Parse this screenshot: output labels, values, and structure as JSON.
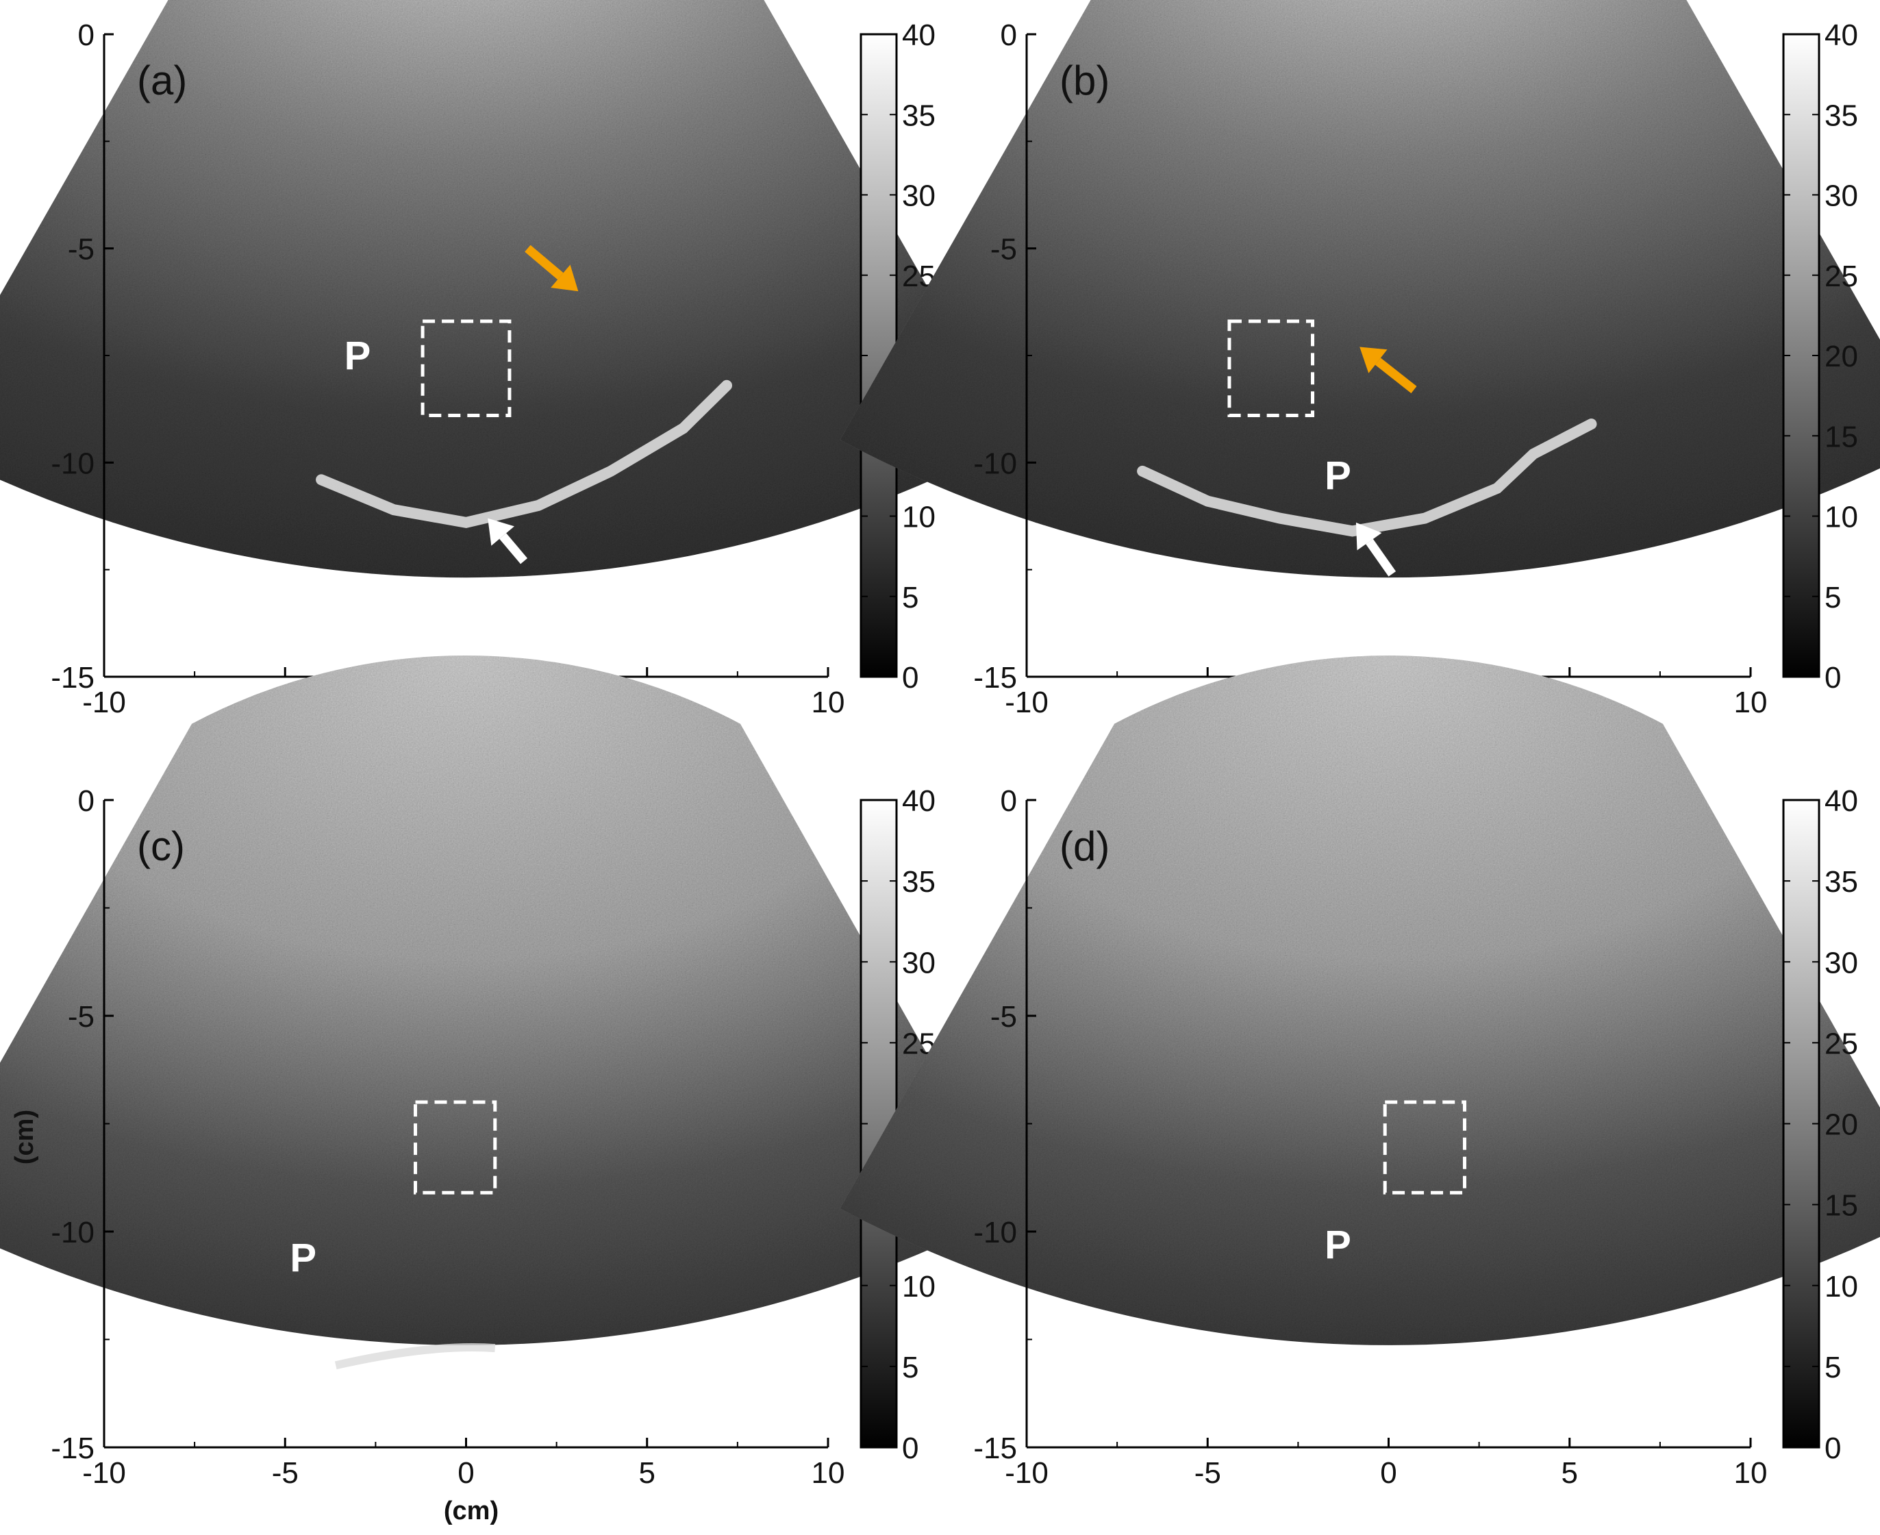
{
  "figure": {
    "xlabel": "(cm)",
    "ylabel": "(cm)",
    "colorbar": {
      "min": 0,
      "max": 40,
      "ticks": [
        "0",
        "5",
        "10",
        "15",
        "20",
        "25",
        "30",
        "35",
        "40"
      ]
    },
    "x_ticks": [
      "-10",
      "-5",
      "0",
      "5",
      "10"
    ],
    "y_ticks": [
      "0",
      "-5",
      "-10",
      "-15"
    ],
    "colors": {
      "orange_arrow": "#f5a100",
      "white_arrow": "#ffffff",
      "roi_box": "#ffffff"
    }
  },
  "chart_data": [
    {
      "type": "heatmap",
      "panel": "(a)",
      "xlim": [
        -10,
        10
      ],
      "ylim": [
        -15,
        0
      ],
      "colorbar_range": [
        0,
        40
      ],
      "roi_box": {
        "x": [
          -1.2,
          1.2
        ],
        "y": [
          -6.7,
          -8.9
        ]
      },
      "markers": [
        {
          "text": "P",
          "x": -3.0,
          "y": -7.5
        }
      ],
      "white_arrow": {
        "tip_x": 0.6,
        "tip_y": -11.3,
        "tail_x": 1.6,
        "tail_y": -12.3
      },
      "orange_arrow": {
        "tip_x": 3.1,
        "tip_y": -6.0,
        "tail_x": 1.7,
        "tail_y": -5.0
      }
    },
    {
      "type": "heatmap",
      "panel": "(b)",
      "xlim": [
        -10,
        10
      ],
      "ylim": [
        -15,
        0
      ],
      "colorbar_range": [
        0,
        40
      ],
      "roi_box": {
        "x": [
          -4.4,
          -2.1
        ],
        "y": [
          -6.7,
          -8.9
        ]
      },
      "markers": [
        {
          "text": "P",
          "x": -1.4,
          "y": -10.3
        }
      ],
      "white_arrow": {
        "tip_x": -0.9,
        "tip_y": -11.4,
        "tail_x": 0.1,
        "tail_y": -12.6
      },
      "orange_arrow": {
        "tip_x": -0.8,
        "tip_y": -7.3,
        "tail_x": 0.7,
        "tail_y": -8.3
      }
    },
    {
      "type": "heatmap",
      "panel": "(c)",
      "xlim": [
        -10,
        10
      ],
      "ylim": [
        -15,
        0
      ],
      "colorbar_range": [
        0,
        40
      ],
      "roi_box": {
        "x": [
          -1.4,
          0.8
        ],
        "y": [
          -7.0,
          -9.1
        ]
      },
      "markers": [
        {
          "text": "P",
          "x": -4.5,
          "y": -10.6
        }
      ],
      "white_arrow": {
        "tip_x": 0.1,
        "tip_y": -12.8,
        "tail_x": 1.1,
        "tail_y": -13.7
      }
    },
    {
      "type": "heatmap",
      "panel": "(d)",
      "xlim": [
        -10,
        10
      ],
      "ylim": [
        -15,
        0
      ],
      "colorbar_range": [
        0,
        40
      ],
      "roi_box": {
        "x": [
          -0.1,
          2.1
        ],
        "y": [
          -7.0,
          -9.1
        ]
      },
      "markers": [
        {
          "text": "P",
          "x": -1.4,
          "y": -10.3
        }
      ]
    }
  ]
}
